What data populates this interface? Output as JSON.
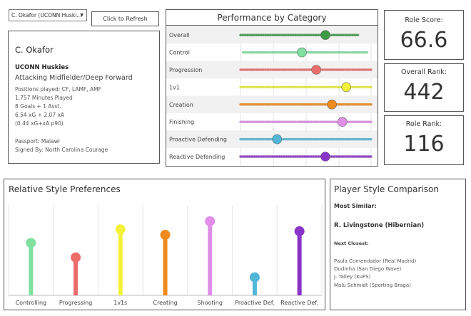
{
  "selector": {
    "value": "C. Okafor (UCONN Huski..."
  },
  "refresh_label": "Click to Refresh",
  "profile": {
    "name": "C. Okafor",
    "team": "UCONN Huskies",
    "role": "Attacking Midfielder/Deep Forward",
    "lines": [
      "Positions played: CF, LAMF, AMF",
      "1,757 Minutes Played",
      "8 Goals + 1 Asst.",
      "6.54 xG + 2.07 xA",
      "(0.44 xG+xA p90)"
    ],
    "passport": "Passport: Malawi",
    "signed": "Signed By: North Carolina Courage"
  },
  "performance": {
    "title": "Performance by Category",
    "rows": [
      {
        "label": "Overall",
        "color": "#3c9b43",
        "value": 0.65,
        "spread": [
          0.0,
          0.9
        ],
        "shade": true
      },
      {
        "label": "Control",
        "color": "#7fe0a0",
        "value": 0.47,
        "spread": [
          0.02,
          0.97
        ],
        "shade": false
      },
      {
        "label": "Progression",
        "color": "#ec6c6a",
        "value": 0.58,
        "spread": [
          0.0,
          1.0
        ],
        "shade": true
      },
      {
        "label": "1v1",
        "color": "#f2f23a",
        "value": 0.81,
        "spread": [
          0.0,
          1.0
        ],
        "shade": false
      },
      {
        "label": "Creation",
        "color": "#f08a1c",
        "value": 0.7,
        "spread": [
          0.0,
          1.0
        ],
        "shade": true
      },
      {
        "label": "Finishing",
        "color": "#e08ee8",
        "value": 0.78,
        "spread": [
          0.0,
          1.0
        ],
        "shade": false
      },
      {
        "label": "Proactive Defending",
        "color": "#52b6d8",
        "value": 0.28,
        "spread": [
          0.0,
          1.0
        ],
        "shade": true
      },
      {
        "label": "Reactive Defending",
        "color": "#8a33c8",
        "value": 0.65,
        "spread": [
          0.0,
          1.0
        ],
        "shade": false
      }
    ]
  },
  "tiles": [
    {
      "label": "Role Score:",
      "value": "66.6"
    },
    {
      "label": "Overall Rank:",
      "value": "442"
    },
    {
      "label": "Role Rank:",
      "value": "116"
    }
  ],
  "style_prefs": {
    "title": "Relative Style Preferences"
  },
  "chart_data": {
    "type": "bar",
    "categories": [
      "Controlling",
      "Progressing",
      "1v1s",
      "Creating",
      "Shooting",
      "Proactive Def.",
      "Reactive Def."
    ],
    "values": [
      0.58,
      0.42,
      0.73,
      0.67,
      0.82,
      0.2,
      0.71
    ],
    "colors": [
      "#7fe0a0",
      "#ec6c6a",
      "#f2f23a",
      "#f08a1c",
      "#e08ee8",
      "#52b6d8",
      "#8a33c8"
    ],
    "ylim": [
      0,
      1
    ],
    "grid": true,
    "xlabel": "",
    "ylabel": ""
  },
  "comparison": {
    "title": "Player Style Comparison",
    "most_similar_label": "Most Similar:",
    "most_similar": "R. Livingstone (Hibernian)",
    "next_label": "Next Closest:",
    "next": [
      "Paula Comendador (Real Madrid)",
      "Dudinha (San Diego Wave)",
      "J. Talley (KuPS)",
      "Malu Schmidt (Sporting Braga)"
    ]
  }
}
